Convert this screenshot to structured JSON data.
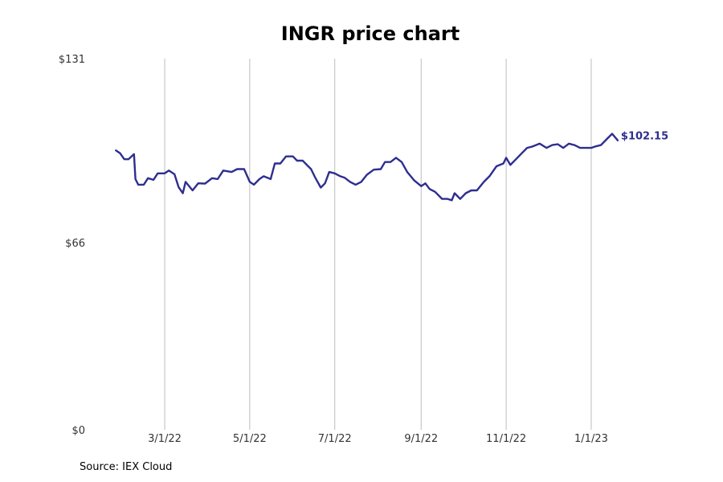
{
  "chart_data": {
    "type": "line",
    "title": "INGR price chart",
    "xlabel": "",
    "ylabel": "",
    "ylim": [
      0,
      131
    ],
    "y_ticks": [
      {
        "value": 0,
        "label": "$0"
      },
      {
        "value": 66,
        "label": "$66"
      },
      {
        "value": 131,
        "label": "$131"
      }
    ],
    "x_range": [
      "2022-01-11",
      "2023-01-31"
    ],
    "x_ticks": [
      {
        "date": "2022-03-01",
        "label": "3/1/22"
      },
      {
        "date": "2022-05-01",
        "label": "5/1/22"
      },
      {
        "date": "2022-07-01",
        "label": "7/1/22"
      },
      {
        "date": "2022-09-01",
        "label": "9/1/22"
      },
      {
        "date": "2022-11-01",
        "label": "11/1/22"
      },
      {
        "date": "2023-01-01",
        "label": "1/1/23"
      }
    ],
    "grid": {
      "vertical": true,
      "horizontal": false
    },
    "series": [
      {
        "color": "#2e2e8f",
        "points": [
          [
            "2022-01-25",
            98.6
          ],
          [
            "2022-01-28",
            97.6
          ],
          [
            "2022-01-31",
            95.5
          ],
          [
            "2022-02-03",
            95.5
          ],
          [
            "2022-02-07",
            97.3
          ],
          [
            "2022-02-08",
            88.5
          ],
          [
            "2022-02-10",
            86.5
          ],
          [
            "2022-02-14",
            86.5
          ],
          [
            "2022-02-17",
            88.8
          ],
          [
            "2022-02-21",
            88.2
          ],
          [
            "2022-02-24",
            90.5
          ],
          [
            "2022-03-01",
            90.5
          ],
          [
            "2022-03-04",
            91.5
          ],
          [
            "2022-03-08",
            90.2
          ],
          [
            "2022-03-11",
            85.6
          ],
          [
            "2022-03-14",
            83.5
          ],
          [
            "2022-03-16",
            87.5
          ],
          [
            "2022-03-21",
            84.5
          ],
          [
            "2022-03-25",
            87.0
          ],
          [
            "2022-03-30",
            86.9
          ],
          [
            "2022-04-04",
            88.8
          ],
          [
            "2022-04-08",
            88.5
          ],
          [
            "2022-04-12",
            91.5
          ],
          [
            "2022-04-18",
            91.0
          ],
          [
            "2022-04-22",
            92.0
          ],
          [
            "2022-04-27",
            92.0
          ],
          [
            "2022-05-01",
            87.5
          ],
          [
            "2022-05-04",
            86.5
          ],
          [
            "2022-05-08",
            88.5
          ],
          [
            "2022-05-11",
            89.5
          ],
          [
            "2022-05-16",
            88.5
          ],
          [
            "2022-05-19",
            94.0
          ],
          [
            "2022-05-23",
            94.0
          ],
          [
            "2022-05-27",
            96.5
          ],
          [
            "2022-06-01",
            96.5
          ],
          [
            "2022-06-04",
            95.0
          ],
          [
            "2022-06-08",
            95.0
          ],
          [
            "2022-06-12",
            93.0
          ],
          [
            "2022-06-14",
            92.0
          ],
          [
            "2022-06-17",
            89.0
          ],
          [
            "2022-06-21",
            85.5
          ],
          [
            "2022-06-24",
            87.0
          ],
          [
            "2022-06-27",
            91.0
          ],
          [
            "2022-07-01",
            90.5
          ],
          [
            "2022-07-05",
            89.5
          ],
          [
            "2022-07-08",
            89.0
          ],
          [
            "2022-07-12",
            87.5
          ],
          [
            "2022-07-16",
            86.5
          ],
          [
            "2022-07-20",
            87.5
          ],
          [
            "2022-07-24",
            90.0
          ],
          [
            "2022-07-29",
            91.8
          ],
          [
            "2022-08-03",
            92.0
          ],
          [
            "2022-08-06",
            94.5
          ],
          [
            "2022-08-10",
            94.5
          ],
          [
            "2022-08-14",
            96.0
          ],
          [
            "2022-08-18",
            94.5
          ],
          [
            "2022-08-22",
            91.0
          ],
          [
            "2022-08-27",
            88.0
          ],
          [
            "2022-09-01",
            86.0
          ],
          [
            "2022-09-04",
            87.0
          ],
          [
            "2022-09-07",
            85.0
          ],
          [
            "2022-09-11",
            84.0
          ],
          [
            "2022-09-16",
            81.5
          ],
          [
            "2022-09-20",
            81.5
          ],
          [
            "2022-09-23",
            81.0
          ],
          [
            "2022-09-25",
            83.5
          ],
          [
            "2022-09-29",
            81.5
          ],
          [
            "2022-10-03",
            83.5
          ],
          [
            "2022-10-07",
            84.5
          ],
          [
            "2022-10-11",
            84.5
          ],
          [
            "2022-10-16",
            87.5
          ],
          [
            "2022-10-20",
            89.5
          ],
          [
            "2022-10-25",
            93.0
          ],
          [
            "2022-10-30",
            94.0
          ],
          [
            "2022-11-01",
            96.0
          ],
          [
            "2022-11-04",
            93.5
          ],
          [
            "2022-11-08",
            95.5
          ],
          [
            "2022-11-12",
            97.5
          ],
          [
            "2022-11-16",
            99.5
          ],
          [
            "2022-11-20",
            100.0
          ],
          [
            "2022-11-25",
            101.0
          ],
          [
            "2022-11-30",
            99.5
          ],
          [
            "2022-12-04",
            100.5
          ],
          [
            "2022-12-08",
            100.8
          ],
          [
            "2022-12-12",
            99.5
          ],
          [
            "2022-12-16",
            101.0
          ],
          [
            "2022-12-20",
            100.5
          ],
          [
            "2022-12-24",
            99.5
          ],
          [
            "2022-12-29",
            99.5
          ],
          [
            "2023-01-01",
            99.5
          ],
          [
            "2023-01-04",
            100.0
          ],
          [
            "2023-01-08",
            100.5
          ],
          [
            "2023-01-12",
            102.5
          ],
          [
            "2023-01-16",
            104.5
          ],
          [
            "2023-01-20",
            102.15
          ]
        ]
      }
    ],
    "last_value_label": "$102.15",
    "source": "Source: IEX Cloud"
  }
}
